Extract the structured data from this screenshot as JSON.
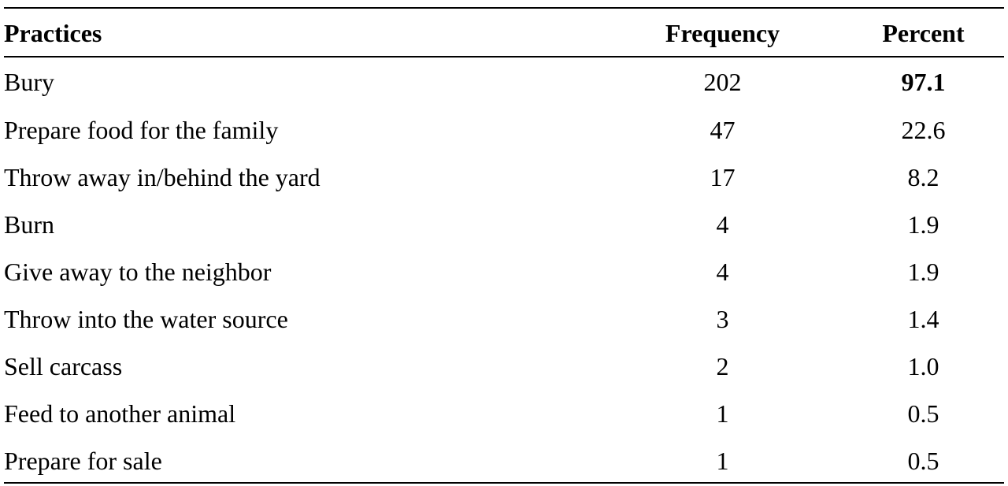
{
  "table": {
    "headers": {
      "practices": "Practices",
      "frequency": "Frequency",
      "percent": "Percent"
    },
    "rows": [
      {
        "practice": "Bury",
        "frequency": "202",
        "percent": "97.1",
        "percent_bold": true
      },
      {
        "practice": "Prepare food for the family",
        "frequency": "47",
        "percent": "22.6"
      },
      {
        "practice": "Throw away in/behind the yard",
        "frequency": "17",
        "percent": "8.2"
      },
      {
        "practice": "Burn",
        "frequency": "4",
        "percent": "1.9"
      },
      {
        "practice": "Give away to the neighbor",
        "frequency": "4",
        "percent": "1.9"
      },
      {
        "practice": "Throw into the water source",
        "frequency": "3",
        "percent": "1.4"
      },
      {
        "practice": "Sell carcass",
        "frequency": "2",
        "percent": "1.0"
      },
      {
        "practice": "Feed to another animal",
        "frequency": "1",
        "percent": "0.5"
      },
      {
        "practice": "Prepare for sale",
        "frequency": "1",
        "percent": "0.5"
      }
    ]
  }
}
